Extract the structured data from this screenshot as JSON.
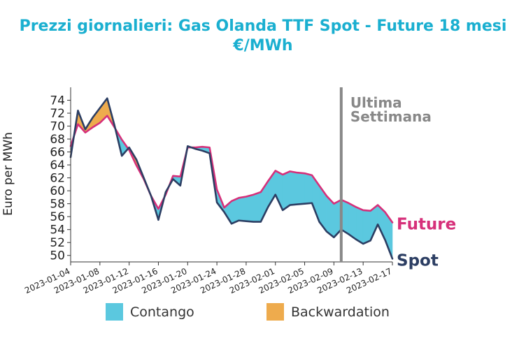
{
  "chart_data": {
    "type": "area",
    "title_line1": "Prezzi giornalieri: Gas Olanda TTF Spot - Future 18 mesi",
    "title_line2": "€/MWh",
    "ylabel": "Euro per MWh",
    "xlabel": "",
    "ylim": [
      49,
      76
    ],
    "yticks": [
      50,
      52,
      54,
      56,
      58,
      60,
      62,
      64,
      66,
      68,
      70,
      72,
      74
    ],
    "x_range": [
      "2023-01-04",
      "2023-02-17"
    ],
    "xticks": [
      "2023-01-04",
      "2023-01-08",
      "2023-01-12",
      "2023-01-16",
      "2023-01-20",
      "2023-01-24",
      "2023-01-28",
      "2023-02-01",
      "2023-02-05",
      "2023-02-09",
      "2023-02-13",
      "2023-02-17"
    ],
    "x": [
      "2023-01-04",
      "2023-01-05",
      "2023-01-06",
      "2023-01-07",
      "2023-01-08",
      "2023-01-09",
      "2023-01-10",
      "2023-01-11",
      "2023-01-12",
      "2023-01-13",
      "2023-01-14",
      "2023-01-15",
      "2023-01-16",
      "2023-01-17",
      "2023-01-18",
      "2023-01-19",
      "2023-01-20",
      "2023-01-21",
      "2023-01-22",
      "2023-01-23",
      "2023-01-24",
      "2023-01-25",
      "2023-01-26",
      "2023-01-27",
      "2023-01-28",
      "2023-01-29",
      "2023-01-30",
      "2023-01-31",
      "2023-02-01",
      "2023-02-02",
      "2023-02-03",
      "2023-02-04",
      "2023-02-05",
      "2023-02-06",
      "2023-02-07",
      "2023-02-08",
      "2023-02-09",
      "2023-02-10",
      "2023-02-11",
      "2023-02-12",
      "2023-02-13",
      "2023-02-14",
      "2023-02-15",
      "2023-02-16",
      "2023-02-17"
    ],
    "series": [
      {
        "name": "Spot",
        "color": "#2c3e63",
        "values": [
          65.2,
          72.4,
          69.5,
          71.3,
          72.8,
          74.3,
          70.1,
          65.4,
          66.7,
          64.8,
          62.0,
          59.2,
          55.5,
          59.8,
          61.8,
          60.8,
          66.9,
          66.5,
          66.2,
          65.8,
          58.2,
          56.7,
          54.9,
          55.4,
          55.3,
          55.2,
          55.2,
          57.5,
          59.4,
          57.0,
          57.8,
          57.9,
          58.0,
          58.1,
          55.2,
          53.7,
          52.8,
          54.0,
          53.3,
          52.5,
          51.8,
          52.3,
          54.8,
          52.4,
          49.5
        ]
      },
      {
        "name": "Future",
        "color": "#d6307a",
        "values": [
          66.9,
          70.3,
          69.0,
          69.8,
          70.5,
          71.6,
          69.8,
          67.9,
          66.3,
          63.9,
          61.8,
          59.2,
          57.2,
          59.4,
          62.3,
          62.2,
          66.7,
          66.7,
          66.8,
          66.7,
          60.2,
          57.4,
          58.4,
          58.9,
          59.1,
          59.4,
          59.8,
          61.5,
          63.1,
          62.5,
          63.0,
          62.8,
          62.7,
          62.4,
          60.8,
          59.2,
          58.0,
          58.6,
          58.1,
          57.5,
          57.0,
          56.9,
          57.8,
          56.7,
          55.1
        ]
      }
    ],
    "fills": [
      {
        "name": "Contango",
        "color": "#5bc8df"
      },
      {
        "name": "Backwardation",
        "color": "#eeab4d"
      }
    ],
    "marker": {
      "x": "2023-02-10",
      "label_line1": "Ultima",
      "label_line2": "Settimana",
      "color": "#888888"
    },
    "end_labels": [
      {
        "series": "Future",
        "text": "Future"
      },
      {
        "series": "Spot",
        "text": "Spot"
      }
    ],
    "legend_position": "bottom"
  }
}
